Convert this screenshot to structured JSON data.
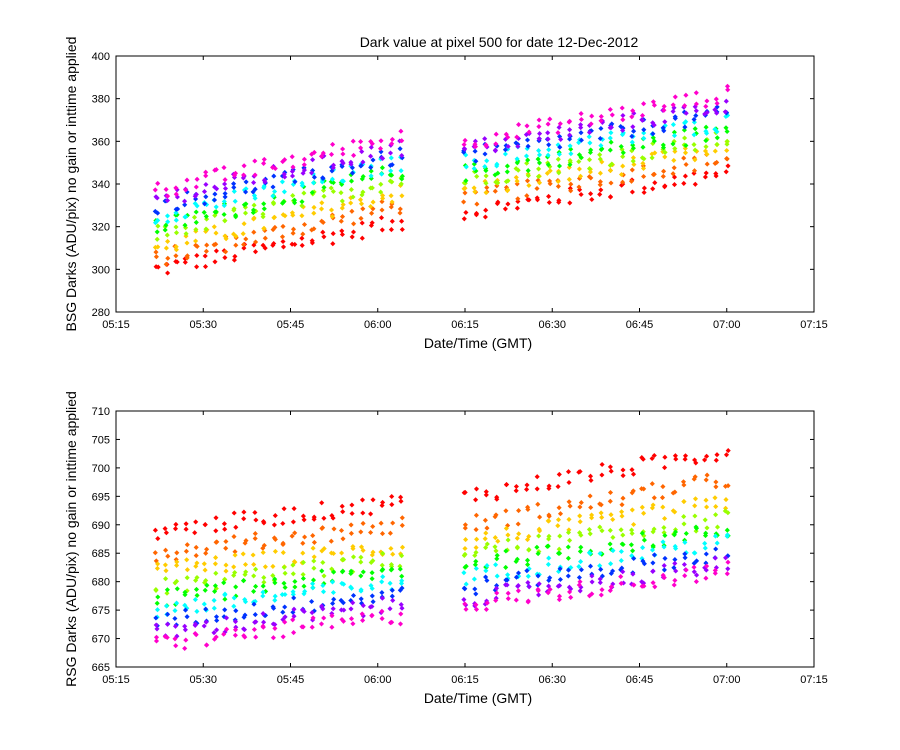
{
  "chart_data": [
    {
      "type": "scatter",
      "title": "Dark value at pixel 500 for date 12-Dec-2012",
      "xlabel": "Date/Time (GMT)",
      "ylabel": "BSG Darks (ADU/pix) no gain or inttime applied",
      "xlim": [
        "05:15",
        "07:15"
      ],
      "ylim": [
        280,
        400
      ],
      "xticks": [
        "05:15",
        "05:30",
        "05:45",
        "06:00",
        "06:15",
        "06:30",
        "06:45",
        "07:00",
        "07:15"
      ],
      "yticks": [
        "280",
        "300",
        "320",
        "340",
        "360",
        "380",
        "400"
      ],
      "grid": false,
      "x_segments": [
        [
          "05:22",
          "06:04"
        ],
        [
          "06:15",
          "07:00"
        ]
      ],
      "series": [
        {
          "color": "#ff0000",
          "start": [
            300,
            322
          ],
          "end": [
            327,
            345
          ],
          "jitter": 4
        },
        {
          "color": "#ff6600",
          "start": [
            305,
            330
          ],
          "end": [
            333,
            352
          ],
          "jitter": 4
        },
        {
          "color": "#ffcc00",
          "start": [
            310,
            336
          ],
          "end": [
            337,
            356
          ],
          "jitter": 4
        },
        {
          "color": "#99ff00",
          "start": [
            317,
            342
          ],
          "end": [
            342,
            361
          ],
          "jitter": 4
        },
        {
          "color": "#00ff00",
          "start": [
            320,
            346
          ],
          "end": [
            345,
            365
          ],
          "jitter": 4
        },
        {
          "color": "#00ffff",
          "start": [
            325,
            350
          ],
          "end": [
            350,
            369
          ],
          "jitter": 4
        },
        {
          "color": "#0033ff",
          "start": [
            330,
            353
          ],
          "end": [
            353,
            373
          ],
          "jitter": 4
        },
        {
          "color": "#9900ff",
          "start": [
            333,
            357
          ],
          "end": [
            356,
            377
          ],
          "jitter": 4
        },
        {
          "color": "#ff00cc",
          "start": [
            337,
            362
          ],
          "end": [
            360,
            382
          ],
          "jitter": 4
        }
      ]
    },
    {
      "type": "scatter",
      "title": "",
      "xlabel": "Date/Time (GMT)",
      "ylabel": "RSG Darks (ADU/pix) no gain or inttime applied",
      "xlim": [
        "05:15",
        "07:15"
      ],
      "ylim": [
        665,
        710
      ],
      "xticks": [
        "05:15",
        "05:30",
        "05:45",
        "06:00",
        "06:15",
        "06:30",
        "06:45",
        "07:00",
        "07:15"
      ],
      "yticks": [
        "665",
        "670",
        "675",
        "680",
        "685",
        "690",
        "695",
        "700",
        "705",
        "710"
      ],
      "grid": false,
      "x_segments": [
        [
          "05:22",
          "06:04"
        ],
        [
          "06:15",
          "07:00"
        ]
      ],
      "series": [
        {
          "color": "#ff0000",
          "start": [
            689,
            694
          ],
          "end": [
            695,
            703
          ],
          "jitter": 1.5
        },
        {
          "color": "#ff6600",
          "start": [
            685,
            690
          ],
          "end": [
            690,
            698
          ],
          "jitter": 1.5
        },
        {
          "color": "#ffcc00",
          "start": [
            682,
            686
          ],
          "end": [
            687,
            694
          ],
          "jitter": 1.5
        },
        {
          "color": "#99ff00",
          "start": [
            679,
            684
          ],
          "end": [
            685,
            691
          ],
          "jitter": 1.5
        },
        {
          "color": "#00ff00",
          "start": [
            677,
            682
          ],
          "end": [
            683,
            689
          ],
          "jitter": 1.5
        },
        {
          "color": "#00ffff",
          "start": [
            675,
            680
          ],
          "end": [
            681,
            687
          ],
          "jitter": 1.5
        },
        {
          "color": "#0033ff",
          "start": [
            673,
            678
          ],
          "end": [
            679,
            685
          ],
          "jitter": 1.5
        },
        {
          "color": "#9900ff",
          "start": [
            671,
            676
          ],
          "end": [
            677,
            683
          ],
          "jitter": 1.5
        },
        {
          "color": "#ff00cc",
          "start": [
            669,
            674
          ],
          "end": [
            676,
            682
          ],
          "jitter": 1.5
        }
      ]
    }
  ]
}
